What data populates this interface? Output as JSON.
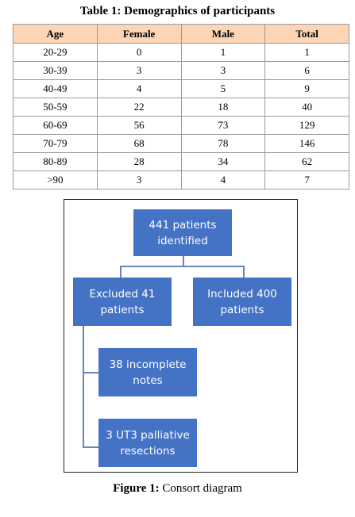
{
  "table": {
    "title": "Table 1: Demographics of participants",
    "headers": [
      "Age",
      "Female",
      "Male",
      "Total"
    ],
    "rows": [
      [
        "20-29",
        "0",
        "1",
        "1"
      ],
      [
        "30-39",
        "3",
        "3",
        "6"
      ],
      [
        "40-49",
        "4",
        "5",
        "9"
      ],
      [
        "50-59",
        "22",
        "18",
        "40"
      ],
      [
        "60-69",
        "56",
        "73",
        "129"
      ],
      [
        "70-79",
        "68",
        "78",
        "146"
      ],
      [
        "80-89",
        "28",
        "34",
        "62"
      ],
      [
        ">90",
        "3",
        "4",
        "7"
      ]
    ]
  },
  "diagram": {
    "identified": "441 patients\nidentified",
    "excluded": "Excluded 41\npatients",
    "included": "Included 400\npatients",
    "incomplete": "38 incomplete\nnotes",
    "palliative": "3 UT3 palliative\nresections"
  },
  "figure": {
    "label": "Figure 1:",
    "caption": "Consort diagram"
  },
  "colors": {
    "header_fill": "#fbd5b5",
    "box_fill": "#4472c4"
  }
}
